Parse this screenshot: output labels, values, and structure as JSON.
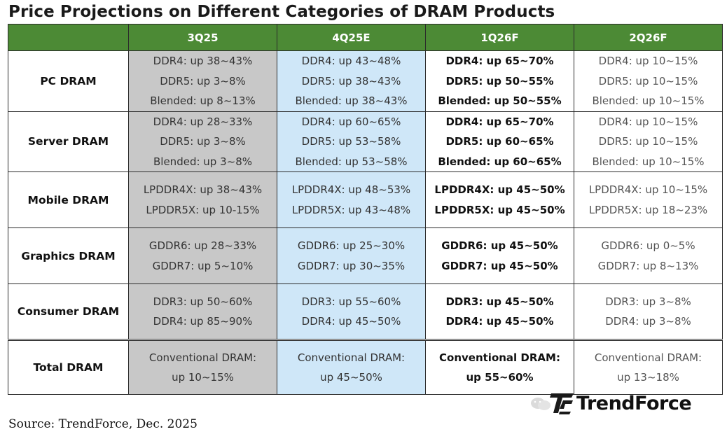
{
  "title": "Price Projections on Different Categories of DRAM Products",
  "columns": [
    "3Q25",
    "4Q25E",
    "1Q26F",
    "2Q26F"
  ],
  "rows": [
    {
      "category": "PC DRAM",
      "cells": [
        [
          "DDR4: up 38~43%",
          "DDR5: up 3~8%",
          "Blended: up 8~13%"
        ],
        [
          "DDR4: up 43~48%",
          "DDR5: up 38~43%",
          "Blended: up 38~43%"
        ],
        [
          "DDR4: up 65~70%",
          "DDR5: up 50~55%",
          "Blended: up 50~55%"
        ],
        [
          "DDR4: up 10~15%",
          "DDR5: up 10~15%",
          "Blended: up 10~15%"
        ]
      ]
    },
    {
      "category": "Server DRAM",
      "cells": [
        [
          "DDR4: up 28~33%",
          "DDR5: up 3~8%",
          "Blended: up 3~8%"
        ],
        [
          "DDR4: up 60~65%",
          "DDR5: up 53~58%",
          "Blended: up 53~58%"
        ],
        [
          "DDR4: up 65~70%",
          "DDR5: up 60~65%",
          "Blended: up 60~65%"
        ],
        [
          "DDR4: up 10~15%",
          "DDR5: up 10~15%",
          "Blended: up 10~15%"
        ]
      ]
    },
    {
      "category": "Mobile DRAM",
      "cells": [
        [
          "LPDDR4X: up 38~43%",
          "LPDDR5X: up 10-15%"
        ],
        [
          "LPDDR4X: up 48~53%",
          "LPDDR5X: up 43~48%"
        ],
        [
          "LPDDR4X: up 45~50%",
          "LPDDR5X: up 45~50%"
        ],
        [
          "LPDDR4X: up 10~15%",
          "LPDDR5X: up 18~23%"
        ]
      ]
    },
    {
      "category": "Graphics DRAM",
      "cells": [
        [
          "GDDR6: up 28~33%",
          "GDDR7: up 5~10%"
        ],
        [
          "GDDR6: up 25~30%",
          "GDDR7: up 30~35%"
        ],
        [
          "GDDR6: up 45~50%",
          "GDDR7: up 45~50%"
        ],
        [
          "GDDR6: up 0~5%",
          "GDDR7: up 8~13%"
        ]
      ]
    },
    {
      "category": "Consumer DRAM",
      "cells": [
        [
          "DDR3: up 50~60%",
          "DDR4: up 85~90%"
        ],
        [
          "DDR3: up 55~60%",
          "DDR4: up 45~50%"
        ],
        [
          "DDR3: up 45~50%",
          "DDR4: up 45~50%"
        ],
        [
          "DDR3: up 3~8%",
          "DDR4: up 3~8%"
        ]
      ]
    },
    {
      "category": "Total DRAM",
      "cells": [
        [
          "Conventional DRAM:",
          "up 10~15%"
        ],
        [
          "Conventional DRAM:",
          "up 45~50%"
        ],
        [
          "Conventional DRAM:",
          "up 55~60%"
        ],
        [
          "Conventional DRAM:",
          "up 13~18%"
        ]
      ]
    }
  ],
  "watermark": "TrendForce",
  "logo": {
    "name": "TrendForce",
    "icon": "trendforce-logo-icon",
    "brand_color": "#1a1a1a"
  },
  "source": "Source: TrendForce, Dec. 2025",
  "colors": {
    "header_bg": "#4c8a35",
    "col_3q25_bg": "#c8c8c8",
    "col_4q25e_bg": "#cfe7f8",
    "col_1q26f_bg": "#ffffff",
    "col_2q26f_bg": "#ffffff"
  }
}
